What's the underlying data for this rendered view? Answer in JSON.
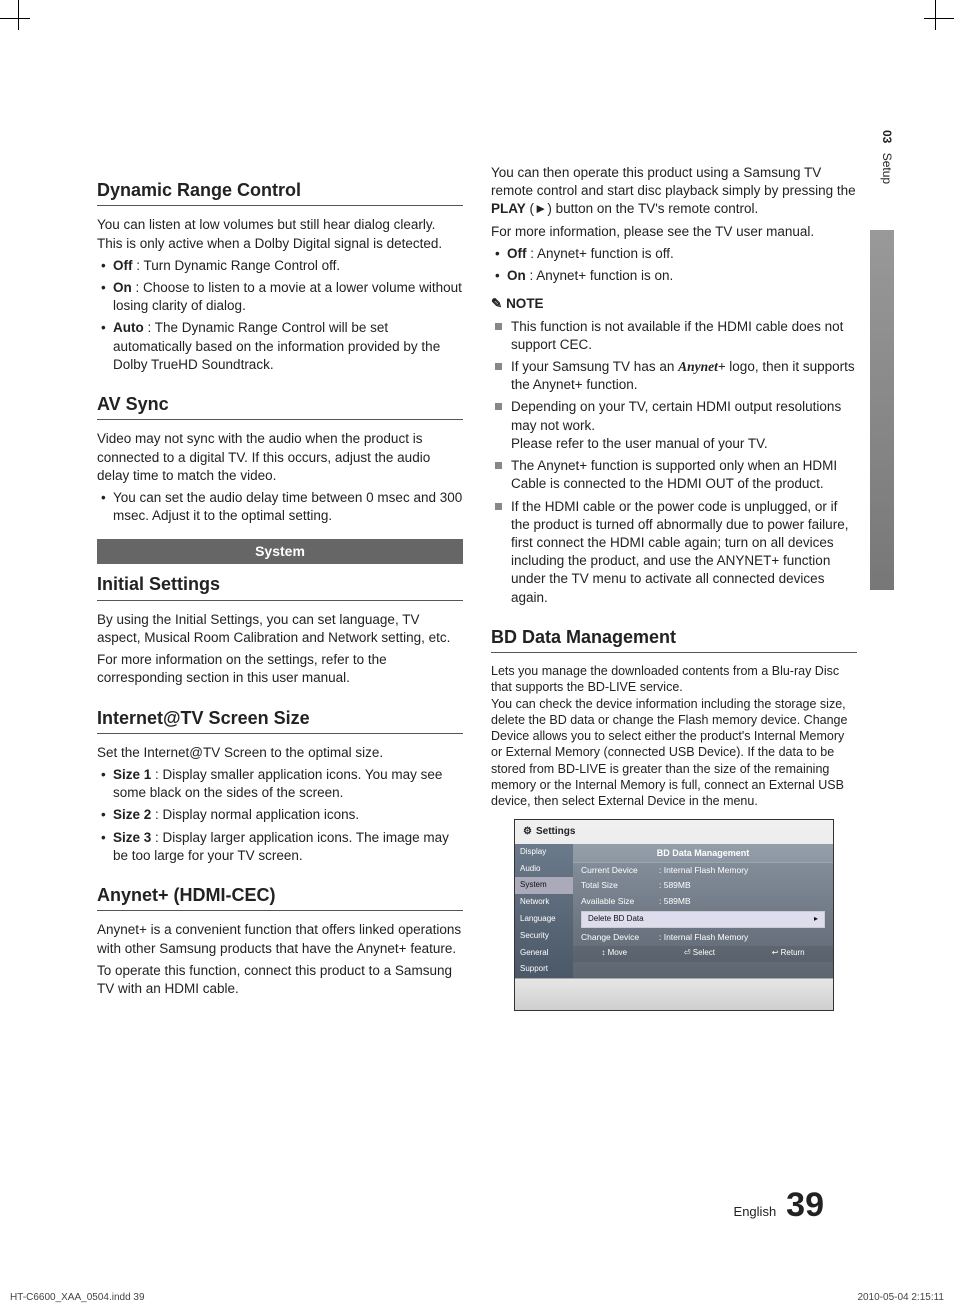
{
  "sideTab": {
    "chapter": "03",
    "label": "Setup"
  },
  "leftCol": {
    "h_drc": "Dynamic Range Control",
    "p_drc": "You can listen at low volumes but still hear dialog clearly. This is only active when a Dolby Digital signal is detected.",
    "drc_items": [
      {
        "b": "Off",
        "t": " : Turn Dynamic Range Control off."
      },
      {
        "b": "On",
        "t": " : Choose to listen to a movie at a lower volume without losing clarity of dialog."
      },
      {
        "b": "Auto",
        "t": " : The Dynamic Range Control will be set automatically based on the information provided by the Dolby TrueHD Soundtrack."
      }
    ],
    "h_av": "AV Sync",
    "p_av": "Video may not sync with the audio when the product is connected to a digital TV. If this occurs, adjust the audio delay time to match the video.",
    "av_items": [
      {
        "b": "",
        "t": "You can set the audio delay time between 0 msec and 300 msec. Adjust it to the optimal setting."
      }
    ],
    "band_system": "System",
    "h_init": "Initial Settings",
    "p_init1": "By using the Initial Settings, you can set language, TV aspect, Musical Room Calibration and Network setting, etc.",
    "p_init2": "For more information on the settings, refer to the corresponding section in this user manual.",
    "h_itv": "Internet@TV Screen Size",
    "p_itv": "Set the Internet@TV Screen to the optimal size.",
    "itv_items": [
      {
        "b": "Size 1",
        "t": " : Display smaller application icons. You may see some black on the sides of the screen."
      },
      {
        "b": "Size 2",
        "t": " : Display normal application icons."
      },
      {
        "b": "Size 3",
        "t": " : Display larger application icons. The image may be too large for your TV screen."
      }
    ],
    "h_any": "Anynet+ (HDMI-CEC)",
    "p_any1": "Anynet+ is a convenient function that offers linked operations with other Samsung products that have the Anynet+ feature.",
    "p_any2": "To operate this function, connect this product to a Samsung TV with an HDMI cable."
  },
  "rightCol": {
    "p_top1a": "You can then operate this product using a Samsung TV remote control and start disc playback simply by pressing the ",
    "p_top1b": "PLAY",
    "p_top1c": " (►) button on the TV's remote control.",
    "p_top2": "For more information, please see the TV user manual.",
    "any_items": [
      {
        "b": "Off",
        "t": " : Anynet+ function is off."
      },
      {
        "b": "On",
        "t": " : Anynet+ function is on."
      }
    ],
    "note_label": "NOTE",
    "notes": [
      "This function is not available if the HDMI cable does not support CEC.",
      "__ANYNET__",
      "Depending on your TV, certain HDMI output resolutions may not work.\nPlease refer to the user manual of your TV.",
      "The Anynet+ function is supported only when an HDMI Cable is connected to the HDMI OUT of the product.",
      "If the HDMI cable or the power code is unplugged, or if the product is turned off abnormally due to power failure, first connect the HDMI cable again; turn on all devices including the product, and use the ANYNET+ function under the TV menu to activate all connected devices again."
    ],
    "note_anynet_a": "If your Samsung TV has an ",
    "note_anynet_logo": "Anynet+",
    "note_anynet_b": " logo, then it supports the Anynet+ function.",
    "h_bd": "BD Data Management",
    "p_bd": "Lets you manage the downloaded contents from a Blu-ray Disc that supports the BD-LIVE service.\nYou can check the device information including the storage size, delete the BD data or change the Flash memory device. Change Device allows you to select either the product's Internal Memory or External Memory (connected USB Device). If the data to be stored from BD-LIVE is greater than the size of the remaining memory or the Internal Memory is full, connect an External USB device, then select External Device in the menu."
  },
  "osd": {
    "title": "Settings",
    "side": [
      "Display",
      "Audio",
      "System",
      "Network",
      "Language",
      "Security",
      "General",
      "Support"
    ],
    "side_selected_index": 2,
    "header": "BD Data Management",
    "rows": [
      {
        "k": "Current Device",
        "v": ": Internal Flash Memory"
      },
      {
        "k": "Total Size",
        "v": ": 589MB"
      },
      {
        "k": "Available Size",
        "v": ": 589MB"
      }
    ],
    "btn1": "Delete BD Data",
    "btn1_arrow": "▸",
    "change_k": "Change Device",
    "change_v": ": Internal Flash Memory",
    "foot": [
      "↕ Move",
      "⏎ Select",
      "↩ Return"
    ]
  },
  "footer": {
    "lang": "English",
    "page": "39"
  },
  "printline": {
    "left": "HT-C6600_XAA_0504.indd   39",
    "right": "2010-05-04    2:15:11"
  }
}
